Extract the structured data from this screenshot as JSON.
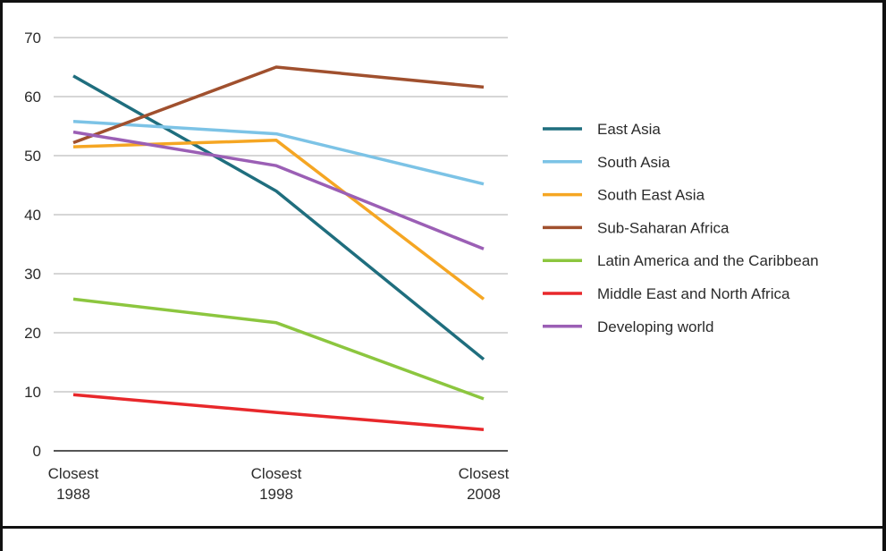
{
  "chart_data": {
    "type": "line",
    "title": "",
    "xlabel": "",
    "ylabel": "",
    "categories": [
      [
        "Closest",
        "1988"
      ],
      [
        "Closest",
        "1998"
      ],
      [
        "Closest",
        "2008"
      ]
    ],
    "ylim": [
      0,
      70
    ],
    "yticks": [
      0,
      10,
      20,
      30,
      40,
      50,
      60,
      70
    ],
    "grid": true,
    "legend_position": "right",
    "series": [
      {
        "name": "East Asia",
        "color": "#1f6e7e",
        "values": [
          63.5,
          44,
          15.5
        ]
      },
      {
        "name": "South Asia",
        "color": "#7cc3e6",
        "values": [
          55.8,
          53.7,
          45.2
        ]
      },
      {
        "name": "South East Asia",
        "color": "#f5a623",
        "values": [
          51.5,
          52.6,
          25.7
        ]
      },
      {
        "name": "Sub-Saharan Africa",
        "color": "#a0502e",
        "values": [
          52.2,
          65,
          61.6
        ]
      },
      {
        "name": "Latin America and the Caribbean",
        "color": "#8cc63f",
        "values": [
          25.7,
          21.7,
          8.8
        ]
      },
      {
        "name": "Middle East and North Africa",
        "color": "#e8282b",
        "values": [
          9.5,
          6.5,
          3.6
        ]
      },
      {
        "name": "Developing world",
        "color": "#9b5fb5",
        "values": [
          54,
          48.3,
          34.2
        ]
      }
    ]
  }
}
